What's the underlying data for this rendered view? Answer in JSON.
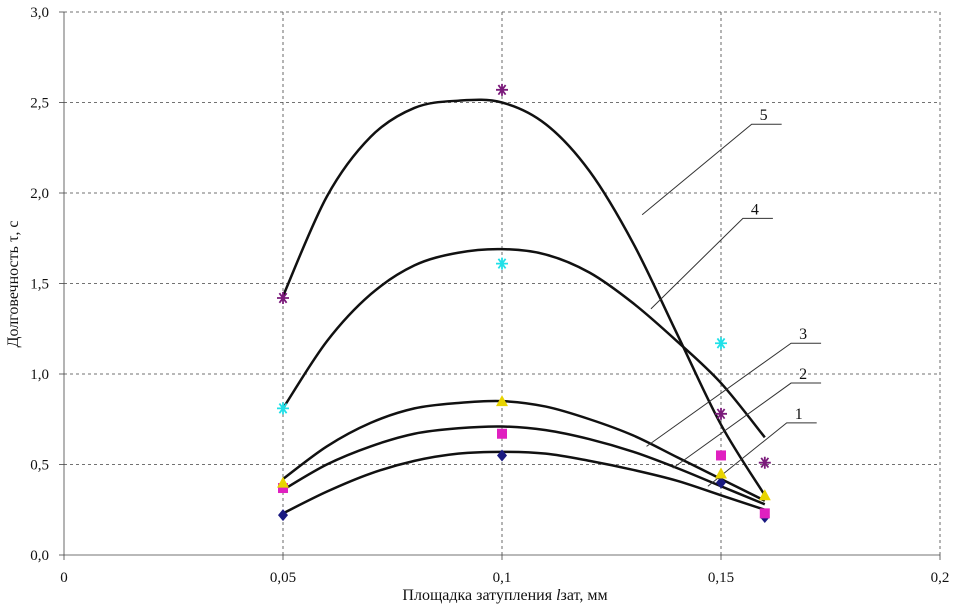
{
  "chart_data": {
    "type": "scatter",
    "xlabel_parts": {
      "before": "Площадка затупления ",
      "italic": "l",
      "after": "зат, мм"
    },
    "ylabel": "Долговечность τ, с",
    "xlim": [
      0,
      0.2
    ],
    "ylim": [
      0,
      3.0
    ],
    "x_ticks": [
      0,
      0.05,
      0.1,
      0.15,
      0.2
    ],
    "x_tick_labels": [
      "0",
      "0,05",
      "0,1",
      "0,15",
      "0,2"
    ],
    "y_ticks": [
      0,
      0.5,
      1.0,
      1.5,
      2.0,
      2.5,
      3.0
    ],
    "y_tick_labels": [
      "0,0",
      "0,5",
      "1,0",
      "1,5",
      "2,0",
      "2,5",
      "3,0"
    ],
    "grid": true,
    "series": [
      {
        "name": "1",
        "marker": "diamond",
        "color": "#1a1a80",
        "x": [
          0.05,
          0.1,
          0.15,
          0.16
        ],
        "y": [
          0.22,
          0.55,
          0.4,
          0.21
        ],
        "fit_x": [
          0.05,
          0.06,
          0.07,
          0.08,
          0.09,
          0.1,
          0.11,
          0.12,
          0.13,
          0.14,
          0.15,
          0.16
        ],
        "fit_y": [
          0.23,
          0.35,
          0.45,
          0.52,
          0.56,
          0.57,
          0.56,
          0.52,
          0.47,
          0.41,
          0.33,
          0.25
        ]
      },
      {
        "name": "2",
        "marker": "square",
        "color": "#e020c0",
        "x": [
          0.05,
          0.1,
          0.15,
          0.16
        ],
        "y": [
          0.37,
          0.67,
          0.55,
          0.23
        ],
        "fit_x": [
          0.05,
          0.06,
          0.07,
          0.08,
          0.09,
          0.1,
          0.11,
          0.12,
          0.13,
          0.14,
          0.15,
          0.16
        ],
        "fit_y": [
          0.36,
          0.5,
          0.6,
          0.67,
          0.7,
          0.71,
          0.69,
          0.64,
          0.57,
          0.48,
          0.38,
          0.28
        ]
      },
      {
        "name": "3",
        "marker": "triangle",
        "color": "#e8d400",
        "x": [
          0.05,
          0.1,
          0.15,
          0.16
        ],
        "y": [
          0.4,
          0.85,
          0.45,
          0.33
        ],
        "fit_x": [
          0.05,
          0.06,
          0.07,
          0.08,
          0.09,
          0.1,
          0.11,
          0.12,
          0.13,
          0.14,
          0.15,
          0.16
        ],
        "fit_y": [
          0.42,
          0.6,
          0.73,
          0.81,
          0.84,
          0.85,
          0.82,
          0.75,
          0.66,
          0.54,
          0.42,
          0.3
        ]
      },
      {
        "name": "4",
        "marker": "star",
        "color": "#20e0e8",
        "x": [
          0.05,
          0.1,
          0.15
        ],
        "y": [
          0.81,
          1.61,
          1.17
        ],
        "fit_x": [
          0.05,
          0.06,
          0.07,
          0.08,
          0.09,
          0.1,
          0.11,
          0.12,
          0.13,
          0.14,
          0.15,
          0.16
        ],
        "fit_y": [
          0.81,
          1.18,
          1.44,
          1.6,
          1.67,
          1.69,
          1.66,
          1.56,
          1.39,
          1.18,
          0.95,
          0.65
        ]
      },
      {
        "name": "5",
        "marker": "star",
        "color": "#7a1a7a",
        "x": [
          0.05,
          0.1,
          0.15,
          0.16
        ],
        "y": [
          1.42,
          2.57,
          0.78,
          0.51
        ],
        "fit_x": [
          0.05,
          0.06,
          0.07,
          0.08,
          0.09,
          0.1,
          0.11,
          0.12,
          0.13,
          0.14,
          0.15,
          0.16
        ],
        "fit_y": [
          1.43,
          1.98,
          2.31,
          2.47,
          2.51,
          2.5,
          2.38,
          2.12,
          1.72,
          1.22,
          0.72,
          0.33
        ]
      }
    ],
    "curve_labels": [
      {
        "text": "1",
        "anchor_x": 0.147,
        "anchor_y": 0.38,
        "label_x": 0.165,
        "label_y": 0.73
      },
      {
        "text": "2",
        "anchor_x": 0.139,
        "anchor_y": 0.48,
        "label_x": 0.166,
        "label_y": 0.95
      },
      {
        "text": "3",
        "anchor_x": 0.133,
        "anchor_y": 0.6,
        "label_x": 0.166,
        "label_y": 1.17
      },
      {
        "text": "4",
        "anchor_x": 0.134,
        "anchor_y": 1.36,
        "label_x": 0.155,
        "label_y": 1.86
      },
      {
        "text": "5",
        "anchor_x": 0.132,
        "anchor_y": 1.88,
        "label_x": 0.157,
        "label_y": 2.38
      }
    ]
  }
}
